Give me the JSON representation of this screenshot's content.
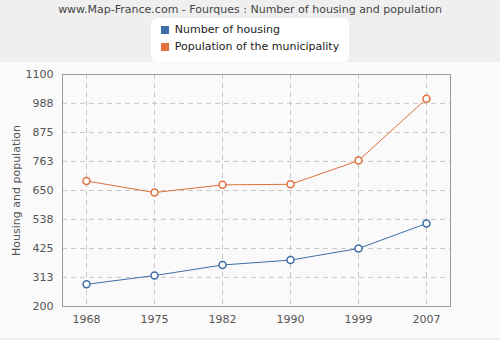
{
  "chart_data": {
    "type": "line",
    "title": "www.Map-France.com - Fourques : Number of housing and population",
    "y_label": "Housing and population",
    "categories": [
      "1968",
      "1975",
      "1982",
      "1990",
      "1999",
      "2007"
    ],
    "series": [
      {
        "name": "Number of housing",
        "color": "#3e6fa6",
        "marker": "circle",
        "values": [
          286,
          320,
          361,
          380,
          425,
          522
        ]
      },
      {
        "name": "Population of the municipality",
        "color": "#e0703e",
        "marker": "circle",
        "values": [
          687,
          642,
          672,
          674,
          766,
          1006
        ]
      }
    ],
    "ylim": [
      200,
      1100
    ],
    "yticks": [
      200,
      313,
      425,
      538,
      650,
      763,
      875,
      988,
      1100
    ],
    "grid": true,
    "legend": "top"
  }
}
